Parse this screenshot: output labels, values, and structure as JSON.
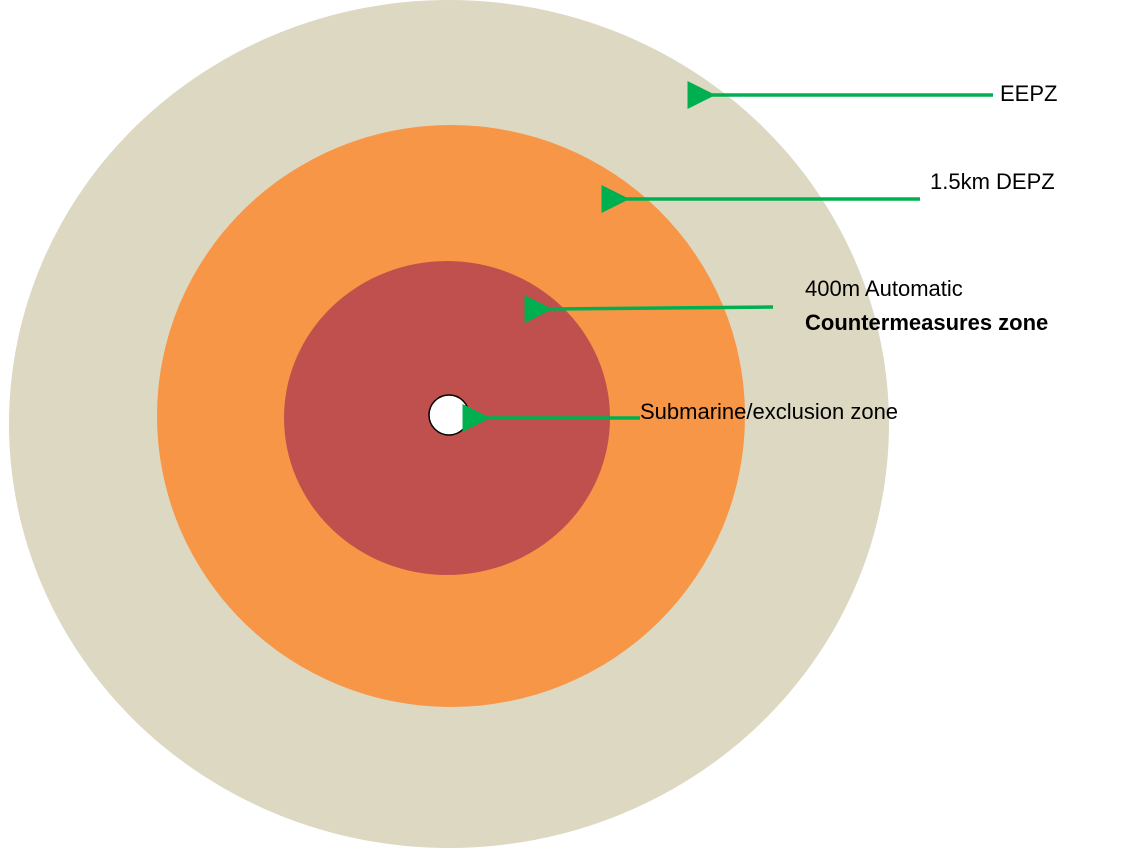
{
  "zones": [
    {
      "label": "EEPZ"
    },
    {
      "label": "1.5km DEPZ"
    },
    {
      "label": "400m Automatic",
      "label_bold": "Countermeasures zone"
    },
    {
      "label": "Submarine/exclusion zone"
    }
  ]
}
